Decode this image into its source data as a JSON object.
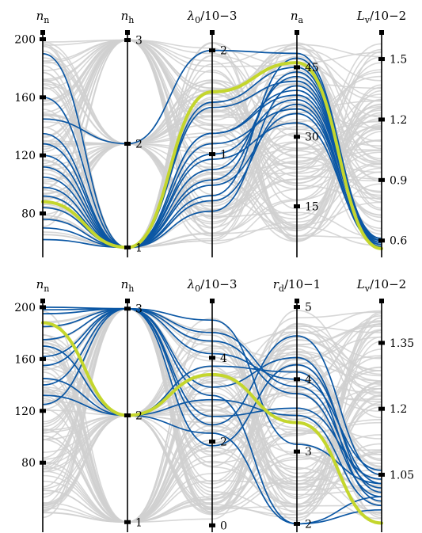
{
  "figure": {
    "colors": {
      "background": "#d0d0d0",
      "highlight": "#0b57a4",
      "best": "#c4d62d",
      "axis": "#000000"
    }
  },
  "chart_data": [
    {
      "type": "parallel_coordinates",
      "axes": [
        {
          "id": "n_n",
          "label": "nn",
          "label_main": "n",
          "label_sub": "n",
          "label_suffix": "",
          "range": [
            53,
            203
          ],
          "ticks": [
            80,
            120,
            160,
            200
          ],
          "tick_side": "left"
        },
        {
          "id": "n_h",
          "label": "nh",
          "label_main": "n",
          "label_sub": "h",
          "label_suffix": "",
          "range": [
            0.95,
            3.05
          ],
          "ticks": [
            1,
            2,
            3
          ],
          "tick_side": "right"
        },
        {
          "id": "lambda0",
          "label": "λ0/10−3",
          "label_main": "λ",
          "label_sub": "0",
          "label_suffix": "/10−3",
          "range": [
            0.05,
            2.15
          ],
          "ticks": [
            1,
            2
          ],
          "tick_side": "right"
        },
        {
          "id": "n_a",
          "label": "na",
          "label_main": "n",
          "label_sub": "a",
          "label_suffix": "",
          "range": [
            5,
            52
          ],
          "ticks": [
            15,
            30,
            45
          ],
          "tick_side": "right"
        },
        {
          "id": "L_v",
          "label": "Lv/10−2",
          "label_main": "L",
          "label_sub": "v",
          "label_suffix": "/10−2",
          "range": [
            0.54,
            1.62
          ],
          "ticks": [
            0.6,
            0.9,
            1.2,
            1.5
          ],
          "tick_side": "right"
        }
      ],
      "best": {
        "n_n": 88,
        "n_h": 1,
        "lambda0": 1.6,
        "n_a": 46,
        "L_v": 0.56
      },
      "highlighted": [
        {
          "n_n": 190,
          "n_h": 1,
          "lambda0": 1.0,
          "n_a": 38,
          "L_v": 0.58
        },
        {
          "n_n": 160,
          "n_h": 1,
          "lambda0": 1.2,
          "n_a": 40,
          "L_v": 0.6
        },
        {
          "n_n": 145,
          "n_h": 2,
          "lambda0": 2.0,
          "n_a": 48,
          "L_v": 0.61
        },
        {
          "n_n": 135,
          "n_h": 1,
          "lambda0": 1.45,
          "n_a": 42,
          "L_v": 0.59
        },
        {
          "n_n": 128,
          "n_h": 1,
          "lambda0": 1.1,
          "n_a": 36,
          "L_v": 0.6
        },
        {
          "n_n": 120,
          "n_h": 1,
          "lambda0": 1.5,
          "n_a": 45,
          "L_v": 0.57
        },
        {
          "n_n": 112,
          "n_h": 1,
          "lambda0": 1.2,
          "n_a": 39,
          "L_v": 0.61
        },
        {
          "n_n": 105,
          "n_h": 1,
          "lambda0": 0.95,
          "n_a": 33,
          "L_v": 0.6
        },
        {
          "n_n": 98,
          "n_h": 1,
          "lambda0": 0.75,
          "n_a": 44,
          "L_v": 0.58
        },
        {
          "n_n": 92,
          "n_h": 1,
          "lambda0": 0.55,
          "n_a": 37,
          "L_v": 0.59
        },
        {
          "n_n": 84,
          "n_h": 1,
          "lambda0": 0.6,
          "n_a": 47,
          "L_v": 0.6
        },
        {
          "n_n": 76,
          "n_h": 1,
          "lambda0": 0.45,
          "n_a": 41,
          "L_v": 0.6
        },
        {
          "n_n": 70,
          "n_h": 1,
          "lambda0": 0.7,
          "n_a": 35,
          "L_v": 0.58
        },
        {
          "n_n": 62,
          "n_h": 1,
          "lambda0": 0.85,
          "n_a": 43,
          "L_v": 0.59
        }
      ],
      "background_count": 90,
      "background_seed": 11
    },
    {
      "type": "parallel_coordinates",
      "axes": [
        {
          "id": "n_n",
          "label": "nn",
          "label_main": "n",
          "label_sub": "n",
          "label_suffix": "",
          "range": [
            30,
            203
          ],
          "ticks": [
            80,
            120,
            160,
            200
          ],
          "tick_side": "left"
        },
        {
          "id": "n_h",
          "label": "nh",
          "label_main": "n",
          "label_sub": "h",
          "label_suffix": "",
          "range": [
            0.95,
            3.05
          ],
          "ticks": [
            1,
            2,
            3
          ],
          "tick_side": "right"
        },
        {
          "id": "lambda0",
          "label": "λ0/10−3",
          "label_main": "λ",
          "label_sub": "0",
          "label_suffix": "/10−3",
          "range": [
            -0.05,
            5.3
          ],
          "ticks": [
            0,
            2,
            4
          ],
          "tick_side": "right"
        },
        {
          "id": "r_d",
          "label": "rd/10−1",
          "label_main": "r",
          "label_sub": "d",
          "label_suffix": "/10−1",
          "range": [
            1.95,
            5.05
          ],
          "ticks": [
            2,
            3,
            4,
            5
          ],
          "tick_side": "right"
        },
        {
          "id": "L_v",
          "label": "Lv/10−2",
          "label_main": "L",
          "label_sub": "v",
          "label_suffix": "/10−2",
          "range": [
            0.93,
            1.44
          ],
          "ticks": [
            1.05,
            1.2,
            1.35
          ],
          "tick_side": "right"
        }
      ],
      "best": {
        "n_n": 188,
        "n_h": 2,
        "lambda0": 3.6,
        "r_d": 3.4,
        "L_v": 0.94
      },
      "highlighted": [
        {
          "n_n": 200,
          "n_h": 3,
          "lambda0": 4.9,
          "r_d": 3.1,
          "L_v": 1.03
        },
        {
          "n_n": 198,
          "n_h": 3,
          "lambda0": 4.4,
          "r_d": 3.8,
          "L_v": 1.0
        },
        {
          "n_n": 195,
          "n_h": 3,
          "lambda0": 2.4,
          "r_d": 4.6,
          "L_v": 1.05
        },
        {
          "n_n": 185,
          "n_h": 3,
          "lambda0": 4.6,
          "r_d": 3.9,
          "L_v": 1.02
        },
        {
          "n_n": 175,
          "n_h": 3,
          "lambda0": 3.1,
          "r_d": 2.0,
          "L_v": 1.0
        },
        {
          "n_n": 170,
          "n_h": 2,
          "lambda0": 3.8,
          "r_d": 4.1,
          "L_v": 0.99
        },
        {
          "n_n": 162,
          "n_h": 3,
          "lambda0": 2.6,
          "r_d": 3.6,
          "L_v": 1.04
        },
        {
          "n_n": 155,
          "n_h": 3,
          "lambda0": 3.3,
          "r_d": 4.3,
          "L_v": 1.01
        },
        {
          "n_n": 145,
          "n_h": 2,
          "lambda0": 2.2,
          "r_d": 2.0,
          "L_v": 0.97
        },
        {
          "n_n": 140,
          "n_h": 3,
          "lambda0": 4.1,
          "r_d": 4.0,
          "L_v": 1.06
        },
        {
          "n_n": 132,
          "n_h": 2,
          "lambda0": 3.0,
          "r_d": 3.5,
          "L_v": 0.98
        },
        {
          "n_n": 125,
          "n_h": 3,
          "lambda0": 1.9,
          "r_d": 4.2,
          "L_v": 1.03
        }
      ],
      "background_count": 90,
      "background_seed": 23
    }
  ]
}
